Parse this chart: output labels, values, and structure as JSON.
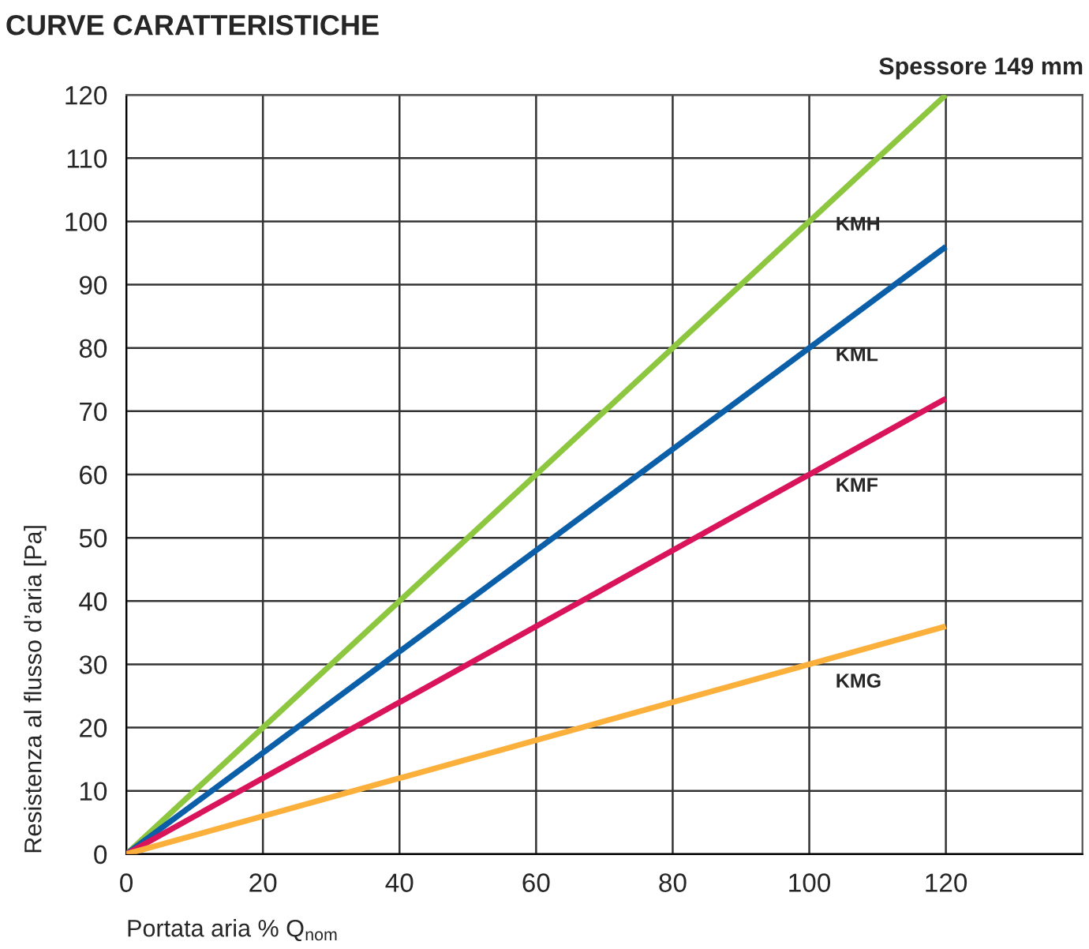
{
  "chart_data": {
    "type": "line",
    "title": "CURVE CARATTERISTICHE",
    "subtitle": "Spessore 149 mm",
    "xlabel": "Portata aria % Q$_{nom}$",
    "ylabel": "Resistenza al flusso d’aria [Pa]",
    "x": [
      0,
      120
    ],
    "series": [
      {
        "name": "KMH",
        "color": "#8dc63f",
        "values": [
          0,
          120
        ]
      },
      {
        "name": "KML",
        "color": "#0a5fa8",
        "values": [
          0,
          96
        ]
      },
      {
        "name": "KMF",
        "color": "#d9145a",
        "values": [
          0,
          72
        ]
      },
      {
        "name": "KMG",
        "color": "#fbb03b",
        "values": [
          0,
          36
        ]
      }
    ],
    "xlim": [
      0,
      140
    ],
    "xticks": [
      0,
      20,
      40,
      60,
      80,
      100,
      120
    ],
    "ylim": [
      0,
      120
    ],
    "yticks": [
      0,
      10,
      20,
      30,
      40,
      50,
      60,
      70,
      80,
      90,
      100,
      110,
      120
    ],
    "grid": true,
    "legend": false,
    "marker": "none",
    "line_style": "solid"
  }
}
